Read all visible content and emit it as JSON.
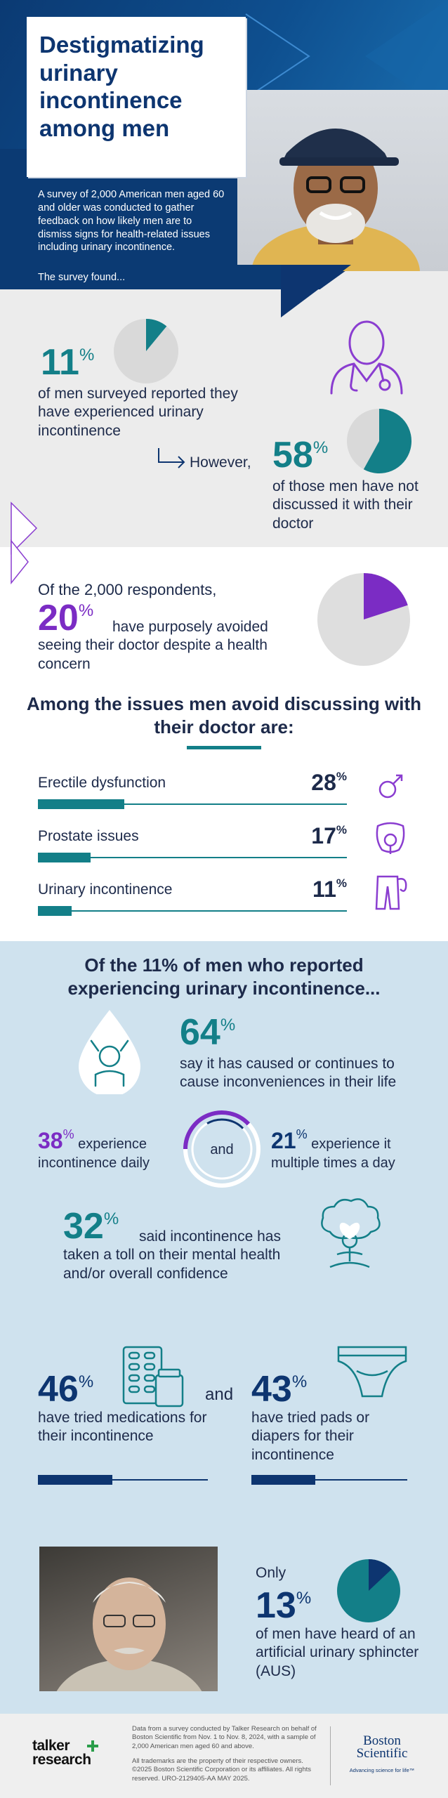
{
  "header": {
    "title": "Destigmatizing urinary incontinence among men",
    "intro": "A survey of 2,000 American men aged 60 and older was conducted to gather feedback on how likely men are to dismiss signs for health-related issues including urinary incontinence.",
    "found": "The survey found..."
  },
  "stat1": {
    "value": "11",
    "unit": "%",
    "text": "of men surveyed reported they have experienced urinary incontinence",
    "pie_fraction": 0.11
  },
  "stat2": {
    "lead": "However,",
    "value": "58",
    "unit": "%",
    "text": "of those men have not discussed it with their doctor",
    "pie_fraction": 0.58
  },
  "stat3": {
    "prefix": "Of the 2,000 respondents,",
    "value": "20",
    "unit": "%",
    "text": "have purposely avoided seeing their doctor despite a health concern",
    "pie_fraction": 0.2
  },
  "issues": {
    "title": "Among the issues men avoid discussing with their doctor are:",
    "items": [
      {
        "label": "Erectile dysfunction",
        "value": "28",
        "unit": "%",
        "fraction": 0.28,
        "icon": "male-symbol-icon"
      },
      {
        "label": "Prostate issues",
        "value": "17",
        "unit": "%",
        "fraction": 0.17,
        "icon": "prostate-icon"
      },
      {
        "label": "Urinary incontinence",
        "value": "11",
        "unit": "%",
        "fraction": 0.11,
        "icon": "pants-drop-icon"
      }
    ]
  },
  "ui_section": {
    "title": "Of the 11% of men who reported experiencing urinary incontinence...",
    "s64": {
      "value": "64",
      "unit": "%",
      "text": "say it has caused or continues to cause inconveniences in their life"
    },
    "s38": {
      "value": "38",
      "unit": "%",
      "text": "experience incontinence daily",
      "fraction": 0.38
    },
    "and": "and",
    "s21": {
      "value": "21",
      "unit": "%",
      "text": "experience it multiple times a day",
      "fraction": 0.21
    },
    "s32": {
      "value": "32",
      "unit": "%",
      "text": "said incontinence has taken a toll on their mental health and/or overall confidence"
    },
    "s46": {
      "value": "46",
      "unit": "%",
      "text": "have tried medications for their incontinence",
      "fraction": 0.46
    },
    "and2": "and",
    "s43": {
      "value": "43",
      "unit": "%",
      "text": "have tried pads or diapers for their incontinence",
      "fraction": 0.43
    }
  },
  "aus": {
    "only": "Only",
    "value": "13",
    "unit": "%",
    "text": "of men have heard of an artificial urinary sphincter (AUS)",
    "pie_fraction": 0.13
  },
  "footer": {
    "logo1_top": "talker",
    "logo1_bottom": "research",
    "note1": "Data from a survey conducted by Talker Research on behalf of Boston Scientific from Nov. 1 to Nov. 8, 2024, with a sample of 2,000 American men aged 60 and above.",
    "note2": "All trademarks are the property of their respective owners. ©2025 Boston Scientific Corporation or its affiliates. All rights reserved. URO-2129405-AA MAY 2025.",
    "logo2": "Boston Scientific",
    "tagline": "Advancing science for life™"
  },
  "colors": {
    "navy": "#0d3570",
    "teal": "#137f88",
    "purple": "#7b2cc4",
    "grey_bg": "#ececec",
    "light_blue": "#cfe2ee",
    "dark_band": "#0b3a73"
  }
}
